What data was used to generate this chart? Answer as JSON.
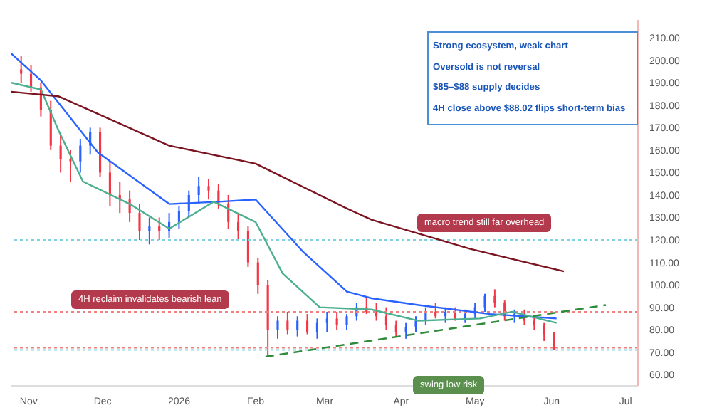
{
  "chart_data": {
    "type": "candlestick",
    "colors": [
      "#f23645",
      "#f23645",
      "#f23645",
      "#f23645",
      "#f23645",
      "#f23645",
      "#2962ff",
      "#2962ff",
      "#f23645",
      "#f23645",
      "#f23645",
      "#f23645",
      "#f23645",
      "#2962ff",
      "#f23645",
      "#2962ff",
      "#2962ff",
      "#2962ff",
      "#2962ff",
      "#f23645",
      "#f23645",
      "#f23645",
      "#f23645",
      "#f23645",
      "#f23645",
      "#f23645",
      "#2962ff",
      "#f23645",
      "#2962ff",
      "#f23645",
      "#2962ff",
      "#2962ff",
      "#f23645",
      "#2962ff",
      "#2962ff",
      "#f23645",
      "#f23645",
      "#f23645",
      "#f23645",
      "#2962ff",
      "#2962ff",
      "#2962ff",
      "#f23645",
      "#2962ff",
      "#f23645",
      "#2962ff",
      "#2962ff",
      "#2962ff",
      "#f23645",
      "#f23645",
      "#2962ff",
      "#f23645",
      "#f23645",
      "#f23645",
      "#f23645"
    ],
    "x": [
      "2025-10-29",
      "2025-11-02",
      "2025-11-06",
      "2025-11-10",
      "2025-11-14",
      "2025-11-18",
      "2025-11-22",
      "2025-11-26",
      "2025-11-30",
      "2025-12-04",
      "2025-12-08",
      "2025-12-12",
      "2025-12-16",
      "2025-12-20",
      "2025-12-24",
      "2025-12-28",
      "2026-01-01",
      "2026-01-05",
      "2026-01-09",
      "2026-01-13",
      "2026-01-17",
      "2026-01-21",
      "2026-01-25",
      "2026-01-29",
      "2026-02-02",
      "2026-02-06",
      "2026-02-10",
      "2026-02-14",
      "2026-02-18",
      "2026-02-22",
      "2026-02-26",
      "2026-03-02",
      "2026-03-06",
      "2026-03-10",
      "2026-03-14",
      "2026-03-18",
      "2026-03-22",
      "2026-03-26",
      "2026-03-30",
      "2026-04-03",
      "2026-04-07",
      "2026-04-11",
      "2026-04-15",
      "2026-04-19",
      "2026-04-23",
      "2026-04-27",
      "2026-05-01",
      "2026-05-05",
      "2026-05-09",
      "2026-05-13",
      "2026-05-17",
      "2026-05-21",
      "2026-05-25",
      "2026-05-29",
      "2026-06-02"
    ],
    "ohlc": [
      [
        196,
        202,
        190,
        194
      ],
      [
        194,
        198,
        186,
        188
      ],
      [
        188,
        190,
        175,
        178
      ],
      [
        178,
        182,
        160,
        162
      ],
      [
        162,
        168,
        150,
        156
      ],
      [
        156,
        160,
        146,
        155
      ],
      [
        155,
        165,
        150,
        162
      ],
      [
        162,
        170,
        158,
        168
      ],
      [
        168,
        170,
        148,
        150
      ],
      [
        150,
        155,
        135,
        140
      ],
      [
        140,
        146,
        132,
        138
      ],
      [
        138,
        142,
        128,
        132
      ],
      [
        132,
        136,
        120,
        124
      ],
      [
        124,
        130,
        118,
        126
      ],
      [
        126,
        130,
        120,
        124
      ],
      [
        124,
        132,
        121,
        128
      ],
      [
        128,
        135,
        125,
        133
      ],
      [
        133,
        142,
        130,
        140
      ],
      [
        140,
        148,
        136,
        144
      ],
      [
        144,
        147,
        138,
        142
      ],
      [
        142,
        145,
        134,
        136
      ],
      [
        136,
        140,
        125,
        128
      ],
      [
        128,
        132,
        120,
        124
      ],
      [
        124,
        126,
        108,
        110
      ],
      [
        110,
        112,
        96,
        100
      ],
      [
        100,
        102,
        68,
        80
      ],
      [
        80,
        86,
        76,
        84
      ],
      [
        84,
        88,
        78,
        80
      ],
      [
        80,
        86,
        77,
        84
      ],
      [
        84,
        87,
        78,
        79
      ],
      [
        79,
        85,
        76,
        83
      ],
      [
        83,
        88,
        79,
        85
      ],
      [
        85,
        88,
        80,
        82
      ],
      [
        82,
        87,
        80,
        86
      ],
      [
        86,
        92,
        84,
        90
      ],
      [
        90,
        95,
        87,
        88
      ],
      [
        88,
        92,
        84,
        86
      ],
      [
        86,
        90,
        80,
        82
      ],
      [
        82,
        84,
        77,
        79
      ],
      [
        79,
        83,
        76,
        81
      ],
      [
        81,
        86,
        79,
        84
      ],
      [
        84,
        90,
        82,
        88
      ],
      [
        88,
        92,
        85,
        86
      ],
      [
        86,
        90,
        83,
        88
      ],
      [
        88,
        90,
        84,
        85
      ],
      [
        85,
        89,
        83,
        87
      ],
      [
        87,
        92,
        85,
        90
      ],
      [
        90,
        96,
        88,
        95
      ],
      [
        95,
        98,
        90,
        92
      ],
      [
        92,
        93,
        84,
        86
      ],
      [
        86,
        89,
        83,
        87
      ],
      [
        87,
        89,
        82,
        84
      ],
      [
        84,
        86,
        80,
        82
      ],
      [
        82,
        83,
        75,
        78
      ],
      [
        78,
        79,
        71,
        73
      ]
    ],
    "series": [
      {
        "type": "line",
        "color": "#2962ff",
        "x": [
          "2025-10-25",
          "2025-11-06",
          "2025-11-29",
          "2025-12-28",
          "2026-01-17",
          "2026-02-01",
          "2026-02-20",
          "2026-03-10",
          "2026-03-20",
          "2026-04-08",
          "2026-05-07",
          "2026-06-03"
        ],
        "values": [
          203,
          191,
          159,
          136,
          137,
          138,
          115,
          97,
          94,
          91,
          87,
          85
        ]
      },
      {
        "type": "line",
        "color": "#4caf8f",
        "x": [
          "2025-10-25",
          "2025-11-06",
          "2025-11-13",
          "2025-11-23",
          "2025-12-12",
          "2025-12-28",
          "2026-01-15",
          "2026-02-01",
          "2026-02-12",
          "2026-02-27",
          "2026-03-20",
          "2026-04-08",
          "2026-05-03",
          "2026-05-16",
          "2026-06-03"
        ],
        "values": [
          190,
          187,
          169,
          146,
          136,
          125,
          137,
          128,
          105,
          90,
          89,
          84,
          85,
          88,
          83
        ]
      },
      {
        "type": "line",
        "color": "#7b1420",
        "x": [
          "2025-10-25",
          "2025-11-13",
          "2025-12-28",
          "2026-02-01",
          "2026-03-10",
          "2026-03-20",
          "2026-04-29",
          "2026-06-06"
        ],
        "values": [
          186,
          184,
          162,
          154,
          134,
          129,
          116,
          106
        ]
      },
      {
        "type": "line",
        "color": "#2e8b3a",
        "line_style": "dashed",
        "x": [
          "2026-02-05",
          "2026-06-23"
        ],
        "values": [
          68,
          91
        ]
      }
    ],
    "ref_lines": [
      {
        "axis": "y",
        "value": 120,
        "color": "#7fd3e0"
      },
      {
        "axis": "y",
        "value": 88,
        "color": "#f08080"
      },
      {
        "axis": "y",
        "value": 72,
        "color": "#f08080"
      },
      {
        "axis": "y",
        "value": 71,
        "color": "#7fd3e0"
      }
    ],
    "xlim": [
      "2025-10-25",
      "2026-07-06"
    ],
    "xticks": [
      {
        "value": "2025-11-01",
        "label": "Nov"
      },
      {
        "value": "2025-12-01",
        "label": "Dec"
      },
      {
        "value": "2026-01-01",
        "label": "2026"
      },
      {
        "value": "2026-02-01",
        "label": "Feb"
      },
      {
        "value": "2026-03-01",
        "label": "Mar"
      },
      {
        "value": "2026-04-01",
        "label": "Apr"
      },
      {
        "value": "2026-05-01",
        "label": "May"
      },
      {
        "value": "2026-06-01",
        "label": "Jun"
      },
      {
        "value": "2026-07-01",
        "label": "Jul"
      }
    ],
    "ylim": [
      55,
      218
    ],
    "yticks": [
      {
        "value": 60,
        "label": "60.00"
      },
      {
        "value": 70,
        "label": "70.00"
      },
      {
        "value": 80,
        "label": "80.00"
      },
      {
        "value": 90,
        "label": "90.00"
      },
      {
        "value": 100,
        "label": "100.00"
      },
      {
        "value": 110,
        "label": "110.00"
      },
      {
        "value": 120,
        "label": "120.00"
      },
      {
        "value": 130,
        "label": "130.00"
      },
      {
        "value": 140,
        "label": "140.00"
      },
      {
        "value": 150,
        "label": "150.00"
      },
      {
        "value": 160,
        "label": "160.00"
      },
      {
        "value": 170,
        "label": "170.00"
      },
      {
        "value": 180,
        "label": "180.00"
      },
      {
        "value": 190,
        "label": "190.00"
      },
      {
        "value": 200,
        "label": "200.00"
      },
      {
        "value": 210,
        "label": "210.00"
      }
    ],
    "annotations": [
      "Strong ecosystem, weak chart",
      "Oversold is not reversal",
      "$85–$88 supply decides",
      "4H close above $88.02 flips short-term bias",
      "macro trend still far overhead",
      "4H reclaim invalidates bearish lean",
      "swing low risk"
    ],
    "grid": false,
    "legend": false
  }
}
